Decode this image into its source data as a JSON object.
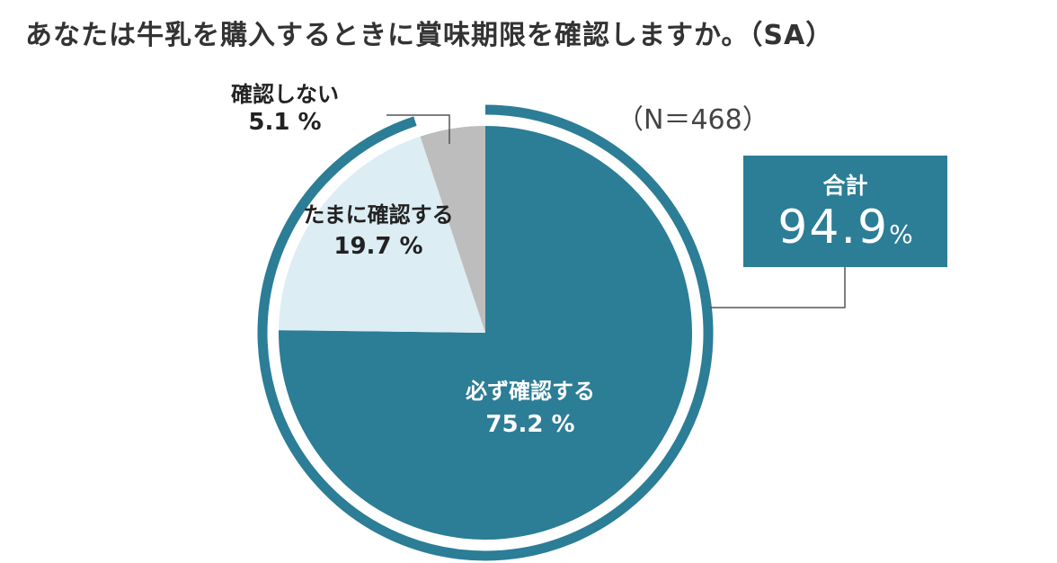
{
  "title": "あなたは牛乳を購入するときに賞味期限を確認しますか。（SA）",
  "sample_size_label": "（N＝468）",
  "total_box": {
    "label": "合計",
    "value": "94.9",
    "unit": "%"
  },
  "colors": {
    "must": "#2c7d96",
    "sometimes": "#dcedf4",
    "no": "#bdbdbd",
    "ring": "#2c7d96",
    "box": "#2c7d96",
    "leader": "#555555"
  },
  "chart_data": {
    "type": "pie",
    "title": "あなたは牛乳を購入するときに賞味期限を確認しますか。（SA）",
    "slices": [
      {
        "label": "必ず確認する",
        "value": 75.2,
        "display": "75.2 %"
      },
      {
        "label": "たまに確認する",
        "value": 19.7,
        "display": "19.7 %"
      },
      {
        "label": "確認しない",
        "value": 5.1,
        "display": "5.1 %"
      }
    ],
    "outer_ring_group": {
      "label": "合計",
      "value": 94.9,
      "members": [
        "必ず確認する",
        "たまに確認する"
      ]
    }
  }
}
